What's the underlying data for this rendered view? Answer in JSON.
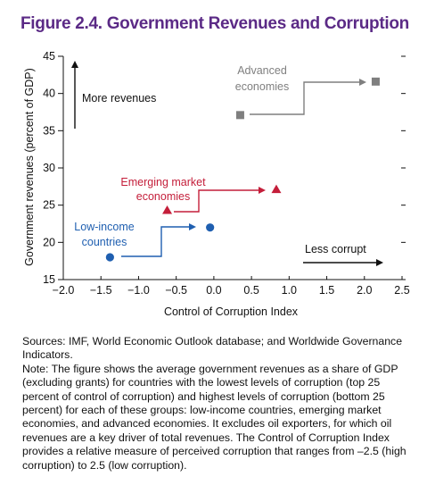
{
  "title": "Figure 2.4. Government Revenues and Corruption",
  "chart_data": {
    "type": "scatter",
    "xlabel": "Control of Corruption Index",
    "ylabel": "Government revenues (percent of GDP)",
    "xlim": [
      -2.0,
      2.5
    ],
    "ylim": [
      15,
      45
    ],
    "x_ticks": [
      "−2.0",
      "−1.5",
      "−1.0",
      "−0.5",
      "0.0",
      "0.5",
      "1.0",
      "1.5",
      "2.0",
      "2.5"
    ],
    "y_ticks": [
      "15",
      "20",
      "25",
      "30",
      "35",
      "40",
      "45"
    ],
    "grid": false,
    "series": [
      {
        "name": "Low-income countries",
        "label_lines": [
          "Low-income",
          "countries"
        ],
        "color": "#1f5fb0",
        "marker": "circle",
        "points": [
          {
            "x": -1.38,
            "y": 18.0
          },
          {
            "x": -0.05,
            "y": 22.0
          }
        ]
      },
      {
        "name": "Emerging market economies",
        "label_lines": [
          "Emerging market",
          "economies"
        ],
        "color": "#c41e3a",
        "marker": "triangle",
        "points": [
          {
            "x": -0.62,
            "y": 24.3
          },
          {
            "x": 0.83,
            "y": 27.1
          }
        ]
      },
      {
        "name": "Advanced economies",
        "label_lines": [
          "Advanced",
          "economies"
        ],
        "color": "#7f7f7f",
        "marker": "square",
        "points": [
          {
            "x": 0.35,
            "y": 37.1
          },
          {
            "x": 2.15,
            "y": 41.6
          }
        ]
      }
    ],
    "annotations": {
      "vertical_arrow": "More revenues",
      "horizontal_arrow": "Less corrupt"
    }
  },
  "sources": "Sources: IMF, World Economic Outlook database; and Worldwide Governance Indicators.",
  "note": "Note: The figure shows the average government revenues as a share of GDP (excluding grants) for countries with the lowest levels of corruption (top 25 percent of control of corruption) and highest levels of corruption (bottom 25 percent) for each of these groups: low-income countries, emerging market economies, and advanced economies. It excludes oil exporters, for which oil revenues are a key driver of total revenues. The Control of Corruption Index provides a relative measure of perceived corruption that ranges from –2.5 (high corruption) to 2.5 (low corruption)."
}
